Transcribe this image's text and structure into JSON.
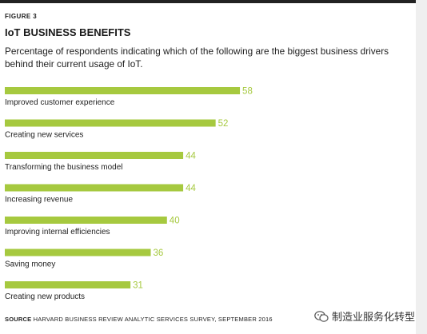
{
  "figure_label": "FIGURE 3",
  "source_label": "SOURCE",
  "source_text": "HARVARD BUSINESS REVIEW ANALYTIC SERVICES SURVEY, SEPTEMBER 2016",
  "watermark_text": "制造业服务化转型",
  "colors": {
    "bar": "#a6c93f",
    "value_text": "#a6c93f",
    "top_rule": "#222222"
  },
  "chart_data": {
    "type": "bar",
    "orientation": "horizontal",
    "title": "IoT BUSINESS BENEFITS",
    "subtitle": "Percentage of respondents indicating which of the following are the biggest business drivers behind their current usage of IoT.",
    "xlim": [
      0,
      100
    ],
    "grid": false,
    "categories": [
      "Improved customer experience",
      "Creating new services",
      "Transforming the business model",
      "Increasing revenue",
      "Improving internal efficiencies",
      "Saving money",
      "Creating new products"
    ],
    "values": [
      58,
      52,
      44,
      44,
      40,
      36,
      31
    ]
  }
}
